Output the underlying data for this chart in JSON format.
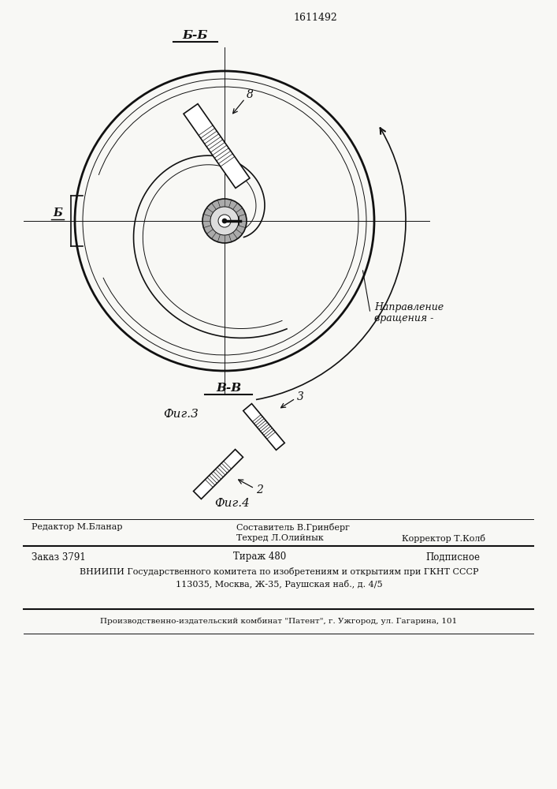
{
  "patent_number": "1611492",
  "fig3_label": "Фиг.3",
  "fig4_label": "Фиг.4",
  "section_bb_label": "Б-Б",
  "section_vv_label": "В-В",
  "rotation_label_1": "Направление",
  "rotation_label_2": "вращения -",
  "label_b": "Б",
  "label_8": "8",
  "label_2": "2",
  "label_3": "3",
  "editor_line": "Редактор М.Бланар",
  "compiler_line": "Составитель В.Гринберг",
  "techred_line": "Техред Л.Олийнык",
  "corrector_line": "Корректор Т.Колб",
  "order_line": "Заказ 3791",
  "tirazh_line": "Тираж 480",
  "podpisnoe_line": "Подписное",
  "vniiipi_line1": "ВНИИПИ Государственного комитета по изобретениям и открытиям при ГКНТ СССР",
  "vniiipi_line2": "113035, Москва, Ж-35, Раушская наб., д. 4/5",
  "patent_line": "Производственно-издательский комбинат \"Патент\", г. Ужгород, ул. Гагарина, 101",
  "bg_color": "#f8f8f5",
  "line_color": "#111111"
}
